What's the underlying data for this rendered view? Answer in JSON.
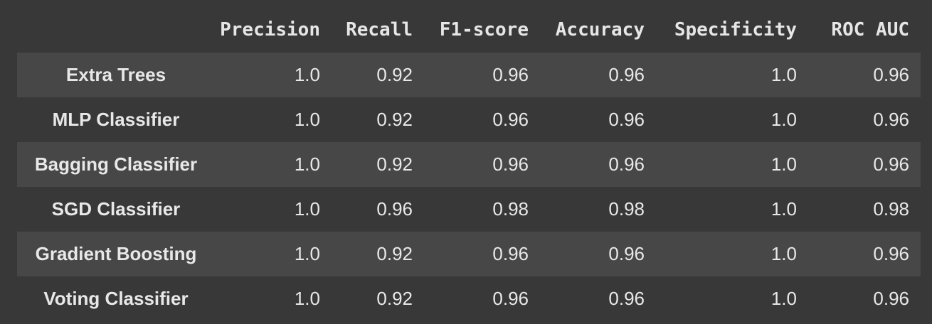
{
  "columns": [
    "Precision",
    "Recall",
    "F1-score",
    "Accuracy",
    "Specificity",
    "ROC AUC"
  ],
  "rows": [
    {
      "name": "Extra Trees",
      "values": [
        "1.0",
        "0.92",
        "0.96",
        "0.96",
        "1.0",
        "0.96"
      ]
    },
    {
      "name": "MLP Classifier",
      "values": [
        "1.0",
        "0.92",
        "0.96",
        "0.96",
        "1.0",
        "0.96"
      ]
    },
    {
      "name": "Bagging Classifier",
      "values": [
        "1.0",
        "0.92",
        "0.96",
        "0.96",
        "1.0",
        "0.96"
      ]
    },
    {
      "name": "SGD Classifier",
      "values": [
        "1.0",
        "0.96",
        "0.98",
        "0.98",
        "1.0",
        "0.98"
      ]
    },
    {
      "name": "Gradient Boosting",
      "values": [
        "1.0",
        "0.92",
        "0.96",
        "0.96",
        "1.0",
        "0.96"
      ]
    },
    {
      "name": "Voting Classifier",
      "values": [
        "1.0",
        "0.92",
        "0.96",
        "0.96",
        "1.0",
        "0.96"
      ]
    }
  ],
  "colors": {
    "background": "#383838",
    "row_alt": "#474747",
    "text": "#e8e8e8"
  }
}
